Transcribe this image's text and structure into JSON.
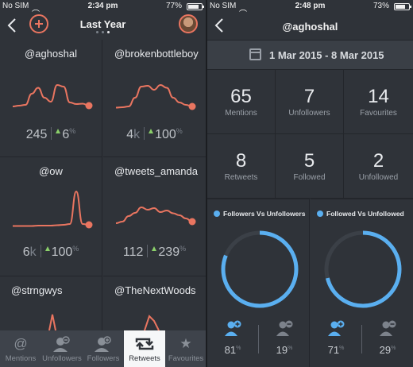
{
  "left": {
    "status": {
      "carrier": "No SIM",
      "time": "2:34 pm",
      "battery": "77%",
      "battery_level": 0.77
    },
    "nav": {
      "title": "Last Year",
      "page_dots": 3,
      "active_dot": 2
    },
    "accounts": [
      {
        "handle": "@aghoshal",
        "value": "245",
        "value_unit": "",
        "change": "6",
        "change_unit": "%",
        "trend": [
          8,
          10,
          12,
          40,
          55,
          30,
          20,
          62,
          58,
          18,
          14,
          15,
          10
        ]
      },
      {
        "handle": "@brokenbottleboy",
        "value": "4",
        "value_unit": "k",
        "change": "100",
        "change_unit": "%",
        "trend": [
          5,
          6,
          8,
          30,
          58,
          60,
          50,
          62,
          55,
          30,
          18,
          12,
          8
        ]
      },
      {
        "handle": "@ow",
        "value": "6",
        "value_unit": "k",
        "change": "100",
        "change_unit": "%",
        "trend": [
          3,
          3,
          3,
          3,
          4,
          4,
          4,
          5,
          6,
          8,
          90,
          8,
          6
        ]
      },
      {
        "handle": "@tweets_amanda",
        "value": "112",
        "value_unit": "",
        "change": "239",
        "change_unit": "%",
        "trend": [
          10,
          14,
          28,
          36,
          50,
          44,
          48,
          38,
          42,
          35,
          30,
          22,
          14
        ]
      },
      {
        "handle": "@strngwys",
        "value": "",
        "value_unit": "",
        "change": "",
        "change_unit": "",
        "trend": []
      },
      {
        "handle": "@TheNextWoods",
        "value": "",
        "value_unit": "",
        "change": "",
        "change_unit": "",
        "trend": []
      }
    ],
    "tabs": [
      {
        "label": "Mentions",
        "icon": "at-icon"
      },
      {
        "label": "Unfollowers",
        "icon": "unfollowers-icon"
      },
      {
        "label": "Followers",
        "icon": "followers-icon"
      },
      {
        "label": "Retweets",
        "icon": "retweet-icon",
        "active": true
      },
      {
        "label": "Favourites",
        "icon": "star-icon"
      }
    ]
  },
  "right": {
    "status": {
      "carrier": "No SIM",
      "time": "2:48 pm",
      "battery": "73%",
      "battery_level": 0.73
    },
    "nav": {
      "title": "@aghoshal"
    },
    "date_range": "1 Mar 2015  -  8 Mar 2015",
    "stats": [
      {
        "value": "65",
        "label": "Mentions"
      },
      {
        "value": "7",
        "label": "Unfollowers"
      },
      {
        "value": "14",
        "label": "Favourites"
      },
      {
        "value": "8",
        "label": "Retweets"
      },
      {
        "value": "5",
        "label": "Followed"
      },
      {
        "value": "2",
        "label": "Unfollowed"
      }
    ],
    "donuts": [
      {
        "title": "Followers Vs Unfollowers",
        "primary_pct": "81",
        "secondary_pct": "19",
        "pct_unit": "%",
        "fraction": 0.81
      },
      {
        "title": "Followed Vs Unfollowed",
        "primary_pct": "71",
        "secondary_pct": "29",
        "pct_unit": "%",
        "fraction": 0.71
      }
    ]
  },
  "colors": {
    "accent": "#e97560",
    "blue": "#5aaff0",
    "green": "#8bd06a",
    "bg": "#2f3339",
    "track": "#3b4047"
  }
}
